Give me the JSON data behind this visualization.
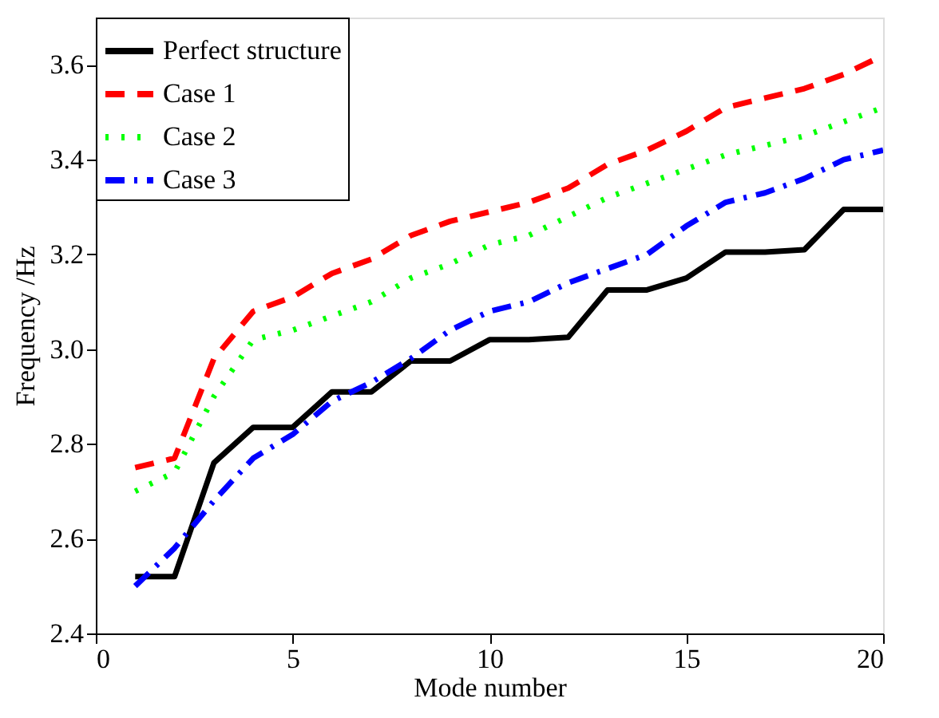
{
  "chart_data": {
    "type": "line",
    "xlabel": "Mode number",
    "ylabel": "Frequency /Hz",
    "x": [
      1,
      2,
      3,
      4,
      5,
      6,
      7,
      8,
      9,
      10,
      11,
      12,
      13,
      14,
      15,
      16,
      17,
      18,
      19,
      20
    ],
    "xlim": [
      0,
      20
    ],
    "xticks": [
      0,
      5,
      10,
      15,
      20
    ],
    "ylim": [
      2.4,
      3.7
    ],
    "yticks": [
      2.4,
      2.6,
      2.8,
      {
        "value": 3.0,
        "label": "3.0"
      },
      3.2,
      3.4,
      3.6
    ],
    "grid": false,
    "legend": "top left",
    "marker": "none",
    "series": [
      {
        "name": "Perfect structure",
        "color": "#000000",
        "line_style": "solid",
        "values": [
          2.52,
          2.52,
          2.76,
          2.835,
          2.835,
          2.91,
          2.91,
          2.975,
          2.975,
          3.02,
          3.02,
          3.025,
          3.125,
          3.125,
          3.15,
          3.205,
          3.205,
          3.21,
          3.295,
          3.295
        ]
      },
      {
        "name": "Case 1",
        "color": "#ff0000",
        "line_style": "dashed",
        "values": [
          2.75,
          2.77,
          2.98,
          3.08,
          3.11,
          3.16,
          3.19,
          3.24,
          3.27,
          3.29,
          3.31,
          3.34,
          3.39,
          3.42,
          3.46,
          3.51,
          3.53,
          3.55,
          3.58,
          3.62
        ]
      },
      {
        "name": "Case 2",
        "color": "#00ff00",
        "line_style": "dotted",
        "values": [
          2.7,
          2.74,
          2.9,
          3.02,
          3.04,
          3.07,
          3.1,
          3.15,
          3.18,
          3.22,
          3.24,
          3.28,
          3.32,
          3.35,
          3.38,
          3.41,
          3.43,
          3.45,
          3.48,
          3.51
        ]
      },
      {
        "name": "Case 3",
        "color": "#0000ff",
        "line_style": "dashdot",
        "values": [
          2.5,
          2.58,
          2.68,
          2.77,
          2.82,
          2.89,
          2.93,
          2.98,
          3.04,
          3.08,
          3.1,
          3.14,
          3.17,
          3.2,
          3.26,
          3.31,
          3.33,
          3.36,
          3.4,
          3.42
        ]
      }
    ]
  }
}
